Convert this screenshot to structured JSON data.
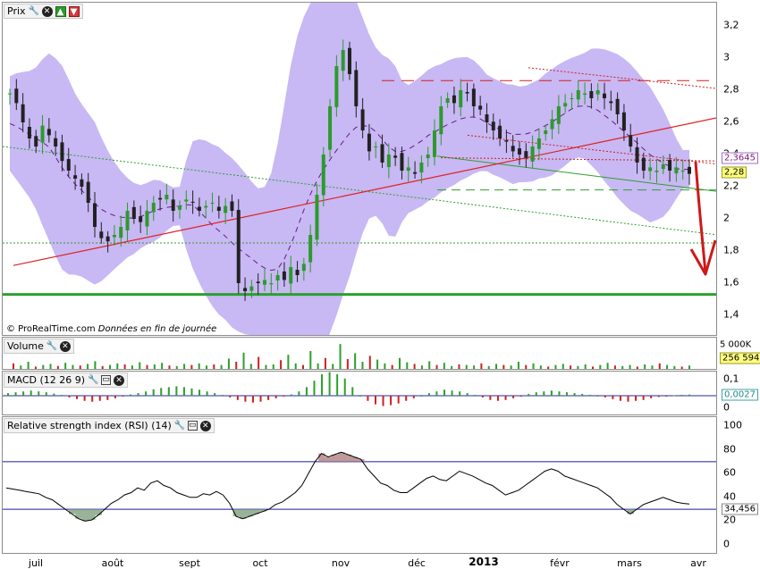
{
  "panels": {
    "price": {
      "title": "Prix"
    },
    "volume": {
      "title": "Volume"
    },
    "macd": {
      "title": "MACD (12 26 9)"
    },
    "rsi": {
      "title": "Relative strength index (RSI) (14)"
    }
  },
  "credit": {
    "brand": "© ProRealTime.com",
    "note": "Données en fin de journée"
  },
  "price_ticks": [
    "3,2",
    "3",
    "2,8",
    "2,6",
    "2,4",
    "2,2",
    "2",
    "1,8",
    "1,6",
    "1,4"
  ],
  "price_labels": {
    "last_close": "2,28",
    "ma_value": "2,3645"
  },
  "volume_ticks": {
    "top": "5 000K",
    "last": "256 594"
  },
  "macd_ticks": {
    "top": "0,1",
    "mid": "0",
    "last": "0,0027"
  },
  "rsi_ticks": [
    "100",
    "80",
    "60",
    "40",
    "20",
    "0"
  ],
  "rsi_last": "34,456",
  "month_labels": [
    "juil",
    "août",
    "sept",
    "oct",
    "nov",
    "déc",
    "2013",
    "févr",
    "mars",
    "avr"
  ],
  "colors": {
    "candle_up": "#2c9a2c",
    "candle_down": "#222222",
    "band": "#c8b8f4",
    "support": "#2ca02c",
    "trend": "#e02020",
    "arrow": "#d01818",
    "rsi_line": "#000000",
    "rsi_level": "#1a1aa0"
  },
  "chart_data": [
    {
      "type": "candlestick",
      "title": "Prix",
      "x": [
        "juil",
        "août",
        "sept",
        "oct",
        "nov",
        "déc",
        "2013",
        "févr",
        "mars",
        "avr"
      ],
      "ylim": [
        1.3,
        3.3
      ],
      "close_series": [
        2.78,
        2.72,
        2.6,
        2.5,
        2.45,
        2.58,
        2.52,
        2.45,
        2.36,
        2.3,
        2.25,
        2.2,
        2.1,
        1.95,
        1.88,
        1.86,
        1.9,
        1.95,
        2.05,
        2.0,
        1.98,
        2.05,
        2.1,
        2.12,
        2.15,
        2.05,
        2.08,
        2.12,
        2.1,
        2.05,
        2.08,
        2.1,
        2.05,
        2.08,
        2.05,
        1.6,
        1.55,
        1.58,
        1.6,
        1.62,
        1.6,
        1.65,
        1.62,
        1.7,
        1.65,
        1.72,
        1.9,
        2.15,
        2.4,
        2.7,
        2.95,
        3.05,
        2.9,
        2.7,
        2.55,
        2.42,
        2.45,
        2.35,
        2.4,
        2.38,
        2.3,
        2.32,
        2.28,
        2.35,
        2.4,
        2.55,
        2.7,
        2.75,
        2.72,
        2.8,
        2.78,
        2.7,
        2.68,
        2.6,
        2.55,
        2.5,
        2.48,
        2.42,
        2.4,
        2.38,
        2.45,
        2.5,
        2.55,
        2.62,
        2.7,
        2.72,
        2.75,
        2.8,
        2.78,
        2.75,
        2.8,
        2.75,
        2.72,
        2.65,
        2.55,
        2.45,
        2.35,
        2.3,
        2.32,
        2.3,
        2.34,
        2.3,
        2.32,
        2.3,
        2.28
      ],
      "last_close": 2.28,
      "ma_value": 2.3645,
      "support_level": 1.53,
      "resistance_levels": [
        2.86,
        2.18
      ],
      "grid": false
    },
    {
      "type": "bar",
      "title": "Volume",
      "values": [
        1.2,
        0.8,
        1.5,
        0.6,
        0.9,
        1.1,
        0.7,
        1.3,
        0.9,
        0.8,
        1.1,
        1.6,
        0.7,
        0.9,
        1.2,
        1.0,
        0.8,
        1.4,
        0.9,
        1.0,
        1.3,
        0.8,
        0.7,
        1.1,
        0.9,
        1.2,
        0.8,
        1.0,
        0.9,
        2.1,
        1.5,
        3.2,
        1.1,
        2.4,
        0.9,
        1.0,
        1.8,
        2.8,
        1.2,
        0.9,
        3.5,
        1.2,
        2.2,
        1.1,
        4.8,
        2.0,
        3.1,
        1.5,
        2.6,
        1.9,
        1.2,
        0.9,
        2.2,
        1.4,
        1.1,
        0.8,
        1.6,
        0.9,
        1.3,
        0.7,
        1.0,
        0.9,
        0.8,
        1.2,
        0.7,
        1.1,
        0.9,
        0.8,
        1.5,
        0.9,
        1.2,
        0.8,
        0.6,
        0.9,
        1.1,
        0.8,
        0.7,
        1.0,
        0.6,
        0.9,
        1.3,
        0.8,
        0.7,
        0.9,
        0.6,
        1.0,
        0.8,
        1.2,
        0.9,
        0.7,
        0.6,
        0.8
      ],
      "unit": "K",
      "ylim": [
        0,
        5000
      ]
    },
    {
      "type": "bar",
      "title": "MACD (12 26 9)",
      "values": [
        0.006,
        0.008,
        0.01,
        0.012,
        0.01,
        0.008,
        0.005,
        0.002,
        -0.004,
        -0.008,
        -0.012,
        -0.014,
        -0.012,
        -0.01,
        -0.006,
        -0.002,
        0.003,
        0.006,
        0.01,
        0.015,
        0.018,
        0.02,
        0.022,
        0.02,
        0.017,
        0.014,
        0.01,
        0.006,
        0.002,
        -0.004,
        -0.01,
        -0.014,
        -0.016,
        -0.014,
        -0.01,
        -0.006,
        -0.002,
        0.003,
        0.01,
        0.02,
        0.035,
        0.05,
        0.055,
        0.05,
        0.04,
        0.02,
        0.0,
        -0.012,
        -0.02,
        -0.024,
        -0.022,
        -0.018,
        -0.012,
        -0.006,
        0.0,
        0.006,
        0.01,
        0.014,
        0.012,
        0.01,
        0.006,
        0.002,
        -0.004,
        -0.01,
        -0.012,
        -0.01,
        -0.006,
        -0.002,
        0.004,
        0.008,
        0.01,
        0.012,
        0.01,
        0.008,
        0.006,
        0.004,
        0.002,
        0.0,
        -0.004,
        -0.008,
        -0.012,
        -0.014,
        -0.012,
        -0.01,
        -0.006,
        -0.003,
        -0.001,
        0.001,
        0.002,
        0.0027
      ],
      "last": 0.0027,
      "ylim": [
        -0.04,
        0.1
      ]
    },
    {
      "type": "line",
      "title": "Relative strength index (RSI) (14)",
      "values": [
        48,
        47,
        46,
        45,
        44,
        43,
        40,
        38,
        34,
        30,
        26,
        22,
        20,
        21,
        25,
        30,
        35,
        38,
        42,
        44,
        48,
        46,
        52,
        54,
        50,
        48,
        44,
        42,
        40,
        40,
        43,
        42,
        45,
        42,
        35,
        24,
        22,
        24,
        26,
        28,
        30,
        34,
        36,
        40,
        44,
        50,
        60,
        70,
        77,
        74,
        76,
        78,
        76,
        74,
        72,
        64,
        58,
        52,
        50,
        46,
        44,
        44,
        48,
        52,
        56,
        58,
        55,
        54,
        58,
        62,
        60,
        58,
        55,
        52,
        50,
        46,
        42,
        44,
        46,
        50,
        54,
        58,
        62,
        64,
        62,
        58,
        56,
        54,
        52,
        50,
        48,
        44,
        40,
        34,
        30,
        26,
        30,
        34,
        36,
        38,
        40,
        38,
        36,
        35,
        34.456
      ],
      "levels": [
        70,
        30
      ],
      "last": 34.456,
      "ylim": [
        0,
        100
      ]
    }
  ]
}
